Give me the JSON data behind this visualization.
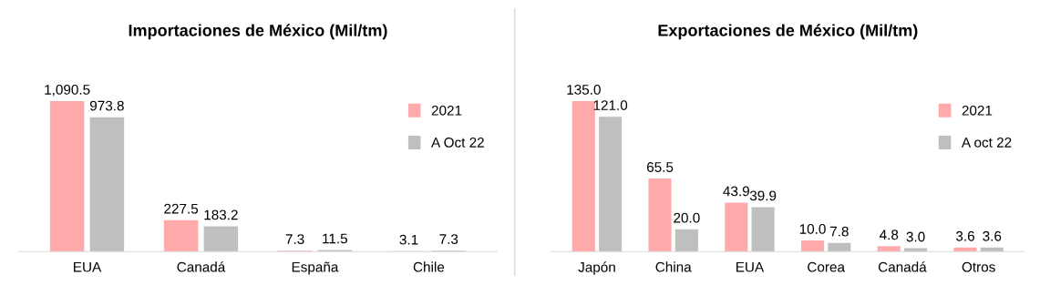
{
  "chart_data": [
    {
      "type": "bar",
      "title": "Importaciones de México (Mil/tm)",
      "categories": [
        "EUA",
        "Canadá",
        "España",
        "Chile"
      ],
      "legend": "right",
      "grid": false,
      "series": [
        {
          "name": "2021",
          "color": "#ffaaaa",
          "values": [
            1090.5,
            227.5,
            7.3,
            3.1
          ],
          "value_labels": [
            "1,090.5",
            "227.5",
            "7.3",
            "3.1"
          ]
        },
        {
          "name": "A Oct 22",
          "color": "#bfbfbf",
          "values": [
            973.8,
            183.2,
            11.5,
            7.3
          ],
          "value_labels": [
            "973.8",
            "183.2",
            "11.5",
            "7.3"
          ]
        }
      ]
    },
    {
      "type": "bar",
      "title": "Exportaciones de México (Mil/tm)",
      "categories": [
        "Japón",
        "China",
        "EUA",
        "Corea",
        "Canadá",
        "Otros"
      ],
      "legend": "right",
      "grid": false,
      "series": [
        {
          "name": "2021",
          "color": "#ffaaaa",
          "values": [
            135.0,
            65.5,
            43.9,
            10.0,
            4.8,
            3.6
          ],
          "value_labels": [
            "135.0",
            "65.5",
            "43.9",
            "10.0",
            "4.8",
            "3.6"
          ]
        },
        {
          "name": "A oct 22",
          "color": "#bfbfbf",
          "values": [
            121.0,
            20.0,
            39.9,
            7.8,
            3.0,
            3.6
          ],
          "value_labels": [
            "121.0",
            "20.0",
            "39.9",
            "7.8",
            "3.0",
            "3.6"
          ]
        }
      ]
    }
  ]
}
